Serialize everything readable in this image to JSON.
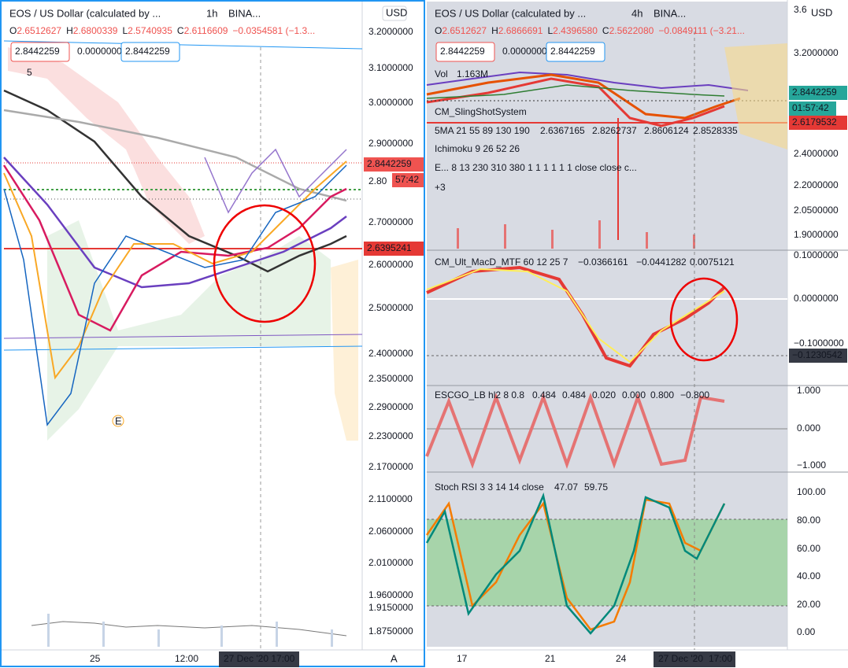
{
  "left_chart": {
    "symbol": "EOS / US Dollar (calculated by ...",
    "interval": "1h",
    "exchange": "BINA...",
    "ohlc": [
      {
        "label": "O",
        "value": "2.6512627"
      },
      {
        "label": "H",
        "value": "2.6800339"
      },
      {
        "label": "L",
        "value": "2.5740935"
      },
      {
        "label": "C",
        "value": "2.6116609"
      }
    ],
    "change": "−0.0354581 (−1.3...",
    "fields": [
      "2.8442259",
      "0.0000000",
      "2.8442259"
    ],
    "badge": "5",
    "currency": "USD",
    "price_axis": [
      "3.2000000",
      "3.1000000",
      "3.0000000",
      "2.9000000",
      "2.7000000",
      "2.6000000",
      "2.5000000",
      "2.4000000",
      "2.3500000",
      "2.2900000",
      "2.2300000",
      "2.1700000",
      "2.1100000",
      "2.0600000",
      "2.0100000",
      "1.9600000",
      "1.9150000",
      "1.8750000"
    ],
    "last_price": "2.8442259",
    "countdown": "57:42",
    "partial_label": "2.80",
    "line_price": "2.6395241",
    "event": "E",
    "time_axis": [
      "25",
      "12:00"
    ],
    "crosshair_time": "27 Dec '20   17:00",
    "auto": "A"
  },
  "right_chart": {
    "symbol": "EOS / US Dollar (calculated by ...",
    "interval": "4h",
    "exchange": "BINA...",
    "ohlc": [
      {
        "label": "O",
        "value": "2.6512627"
      },
      {
        "label": "H",
        "value": "2.6866691"
      },
      {
        "label": "L",
        "value": "2.4396580"
      },
      {
        "label": "C",
        "value": "2.5622080"
      }
    ],
    "change": "−0.0849111 (−3.21...",
    "fields": [
      "2.8442259",
      "0.0000000",
      "2.8442259"
    ],
    "indicators": {
      "vol": "Vol",
      "vol_value": "1.163M",
      "slingshot": "CM_SlingShotSystem",
      "ma": "5MA 21 55 89 130 190",
      "ma_values": [
        "2.6367165",
        "2.8262737",
        "2.8606124",
        "2.8528335"
      ],
      "ichimoku": "Ichimoku 9 26 52 26",
      "ema": "E... 8 13 230 310 380 1 1 1 1 1 1 close close c...",
      "more": "+3"
    },
    "price_axis_top": "3.6",
    "currency": "USD",
    "price_axis": [
      "3.2000000",
      "2.4000000",
      "2.2000000",
      "2.0500000",
      "1.9000000"
    ],
    "last_price": "2.8442259",
    "countdown": "01:57:42",
    "line_price": "2.6179532",
    "macd": {
      "title": "CM_Ult_MacD_MTF 60 12 25 7",
      "values": [
        "−0.0366161",
        "−0.0441282",
        "0.0075121"
      ],
      "axis": [
        "0.1000000",
        "0.0000000",
        "−0.1000000"
      ],
      "crosshair": "−0.1230542"
    },
    "escgo": {
      "title": "ESCGO_LB hl2 8 0.8",
      "values": [
        "0.484",
        "0.484",
        "0.020",
        "0.000",
        "0.800",
        "−0.800"
      ],
      "axis": [
        "1.000",
        "0.000",
        "−1.000"
      ]
    },
    "stoch": {
      "title": "Stoch RSI 3 3 14 14 close",
      "values": [
        "47.07",
        "59.75"
      ],
      "axis": [
        "100.00",
        "80.00",
        "60.00",
        "40.00",
        "20.00",
        "0.00"
      ]
    },
    "time_axis": [
      "17",
      "21",
      "24"
    ],
    "crosshair_date": "27 Dec '20",
    "crosshair_time": "17:00"
  }
}
